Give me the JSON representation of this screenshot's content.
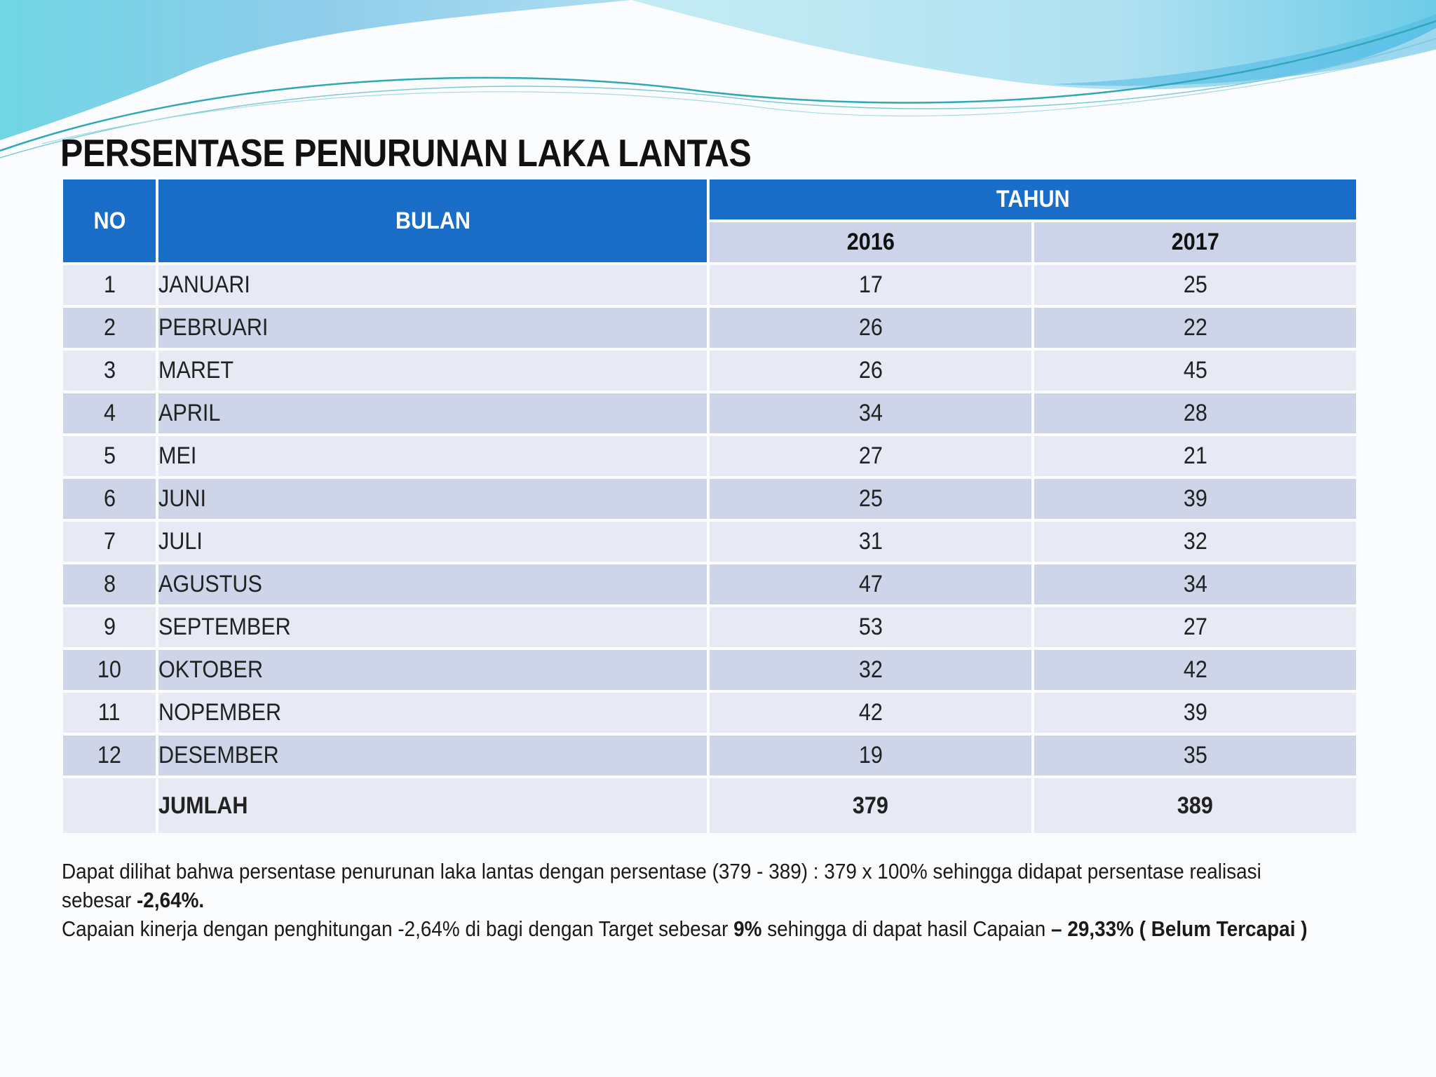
{
  "title": "PERSENTASE PENURUNAN LAKA LANTAS",
  "table": {
    "headers": {
      "no": "NO",
      "bulan": "BULAN",
      "tahun": "TAHUN"
    },
    "years": [
      "2016",
      "2017"
    ],
    "rows": [
      {
        "no": "1",
        "bulan": "JANUARI",
        "y2016": "17",
        "y2017": "25"
      },
      {
        "no": "2",
        "bulan": "PEBRUARI",
        "y2016": "26",
        "y2017": "22"
      },
      {
        "no": "3",
        "bulan": "MARET",
        "y2016": "26",
        "y2017": "45"
      },
      {
        "no": "4",
        "bulan": "APRIL",
        "y2016": "34",
        "y2017": "28"
      },
      {
        "no": "5",
        "bulan": "MEI",
        "y2016": "27",
        "y2017": "21"
      },
      {
        "no": "6",
        "bulan": "JUNI",
        "y2016": "25",
        "y2017": "39"
      },
      {
        "no": "7",
        "bulan": "JULI",
        "y2016": "31",
        "y2017": "32"
      },
      {
        "no": "8",
        "bulan": "AGUSTUS",
        "y2016": "47",
        "y2017": "34"
      },
      {
        "no": "9",
        "bulan": "SEPTEMBER",
        "y2016": "53",
        "y2017": "27"
      },
      {
        "no": "10",
        "bulan": "OKTOBER",
        "y2016": "32",
        "y2017": "42"
      },
      {
        "no": "11",
        "bulan": "NOPEMBER",
        "y2016": "42",
        "y2017": "39"
      },
      {
        "no": "12",
        "bulan": "DESEMBER",
        "y2016": "19",
        "y2017": "35"
      }
    ],
    "total": {
      "label": "JUMLAH",
      "y2016": "379",
      "y2017": "389"
    }
  },
  "summary": {
    "line1": "Dapat dilihat bahwa persentase penurunan laka lantas dengan persentase (379 - 389) : 379 x 100%  sehingga didapat persentase realisasi",
    "line2_text": "sebesar ",
    "line2_bold": "-2,64%.",
    "line3_a": "Capaian kinerja dengan penghitungan -2,64% di bagi dengan Target sebesar ",
    "line3_b": "9%",
    "line3_c": " sehingga di dapat hasil Capaian ",
    "line3_d": "– 29,33% ( Belum Tercapai )"
  },
  "colors": {
    "header_blue": "#1a6ec8",
    "row_light": "#e7eaf4",
    "row_dark": "#ced5e9",
    "wave_cyan": "#5fd0e0",
    "wave_blue": "#4fb0e8"
  }
}
